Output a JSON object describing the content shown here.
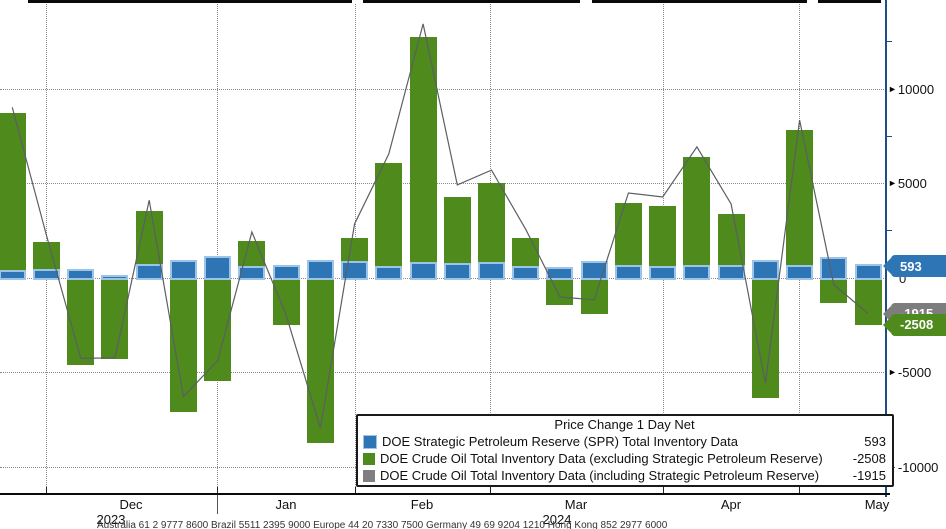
{
  "chart_data": {
    "type": "bar",
    "title": "Price Change 1 Day Net",
    "x_axis": {
      "months": [
        "Dec",
        "Jan",
        "Feb",
        "Mar",
        "Apr",
        "May"
      ],
      "years": [
        "2023",
        "2024"
      ]
    },
    "y_axis": {
      "tick_labels": [
        "10000",
        "5000",
        "0",
        "-5000",
        "-10000"
      ],
      "tick_values": [
        10000,
        5000,
        0,
        -5000,
        -10000
      ],
      "minor_tick_values": [
        12500,
        7500,
        2500,
        -2500,
        -7500
      ],
      "ylim": [
        -11400,
        14680
      ],
      "grid": "dotted"
    },
    "series": [
      {
        "name": "DOE Strategic Petroleum Reserve (SPR) Total Inventory Data",
        "type": "bar",
        "color": "#2e75b6",
        "last_value": 593,
        "values": [
          300,
          320,
          370,
          50,
          590,
          800,
          1050,
          480,
          530,
          800,
          750,
          480,
          700,
          640,
          700,
          480,
          430,
          750,
          530,
          480,
          530,
          530,
          800,
          530,
          960,
          593
        ]
      },
      {
        "name": "DOE Crude Oil Total Inventory Data (excluding Strategic Petroleum Reserve)",
        "type": "bar",
        "color": "#4e8a1c",
        "last_value": -2508,
        "values": [
          8700,
          1900,
          -4650,
          -4300,
          3500,
          -7100,
          -5450,
          1930,
          -2510,
          -8770,
          2090,
          6060,
          12720,
          4260,
          4980,
          2070,
          -1460,
          -1930,
          3940,
          3780,
          6380,
          3360,
          -6390,
          7800,
          -1330,
          -2508
        ]
      },
      {
        "name": "DOE Crude Oil Total Inventory Data (including Strategic Petroleum Reserve)",
        "type": "line",
        "color": "#5b5f63",
        "last_value": -1915,
        "values": [
          9000,
          2220,
          -4280,
          -4250,
          4090,
          -6300,
          -4400,
          2410,
          -1980,
          -7970,
          2840,
          6540,
          13420,
          4900,
          5680,
          2550,
          -1030,
          -1180,
          4470,
          4260,
          6910,
          3890,
          -5590,
          8330,
          -370,
          -1915
        ]
      }
    ],
    "legend_position": "bottom-right"
  },
  "legend": {
    "title": "Price Change 1 Day Net",
    "entries": [
      {
        "label": "DOE Strategic Petroleum Reserve (SPR) Total Inventory Data",
        "value": "593",
        "color": "#2e75b6"
      },
      {
        "label": "DOE Crude Oil Total Inventory Data (excluding Strategic Petroleum Reserve)",
        "value": "-2508",
        "color": "#4e8a1c"
      },
      {
        "label": "DOE Crude Oil Total Inventory Data (including Strategic Petroleum Reserve)",
        "value": "-1915",
        "color": "#7f7f7f"
      }
    ]
  },
  "value_tags": [
    {
      "text": "593",
      "value": 593,
      "color": "#2e75b6"
    },
    {
      "text": "-1915",
      "value": -1915,
      "color": "#7d7d7d"
    },
    {
      "text": "-2508",
      "value": -2508,
      "color": "#4e8a1c"
    }
  ],
  "axis_extra": {
    "zero_label": "0"
  },
  "footer": "Australia 61 2 9777 8600 Brazil 5511 2395 9000 Europe 44 20 7330 7500 Germany 49 69 9204 1210 Hong Kong 852 2977 6000"
}
